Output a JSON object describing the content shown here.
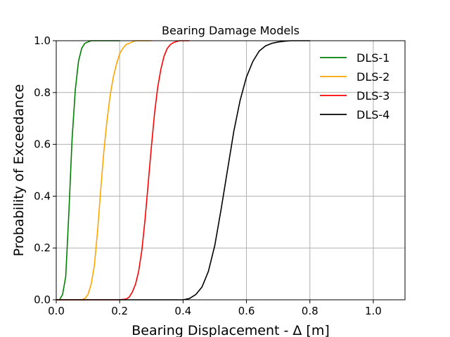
{
  "chart_data": {
    "type": "line",
    "title": "Bearing Damage Models",
    "xlabel": "Bearing Displacement - Δ [m]",
    "ylabel": "Probability of Exceedance",
    "xlim": [
      0.0,
      1.1
    ],
    "ylim": [
      0.0,
      1.0
    ],
    "xticks": [
      "0.0",
      "0.2",
      "0.4",
      "0.6",
      "0.8",
      "1.0"
    ],
    "yticks": [
      "0.0",
      "0.2",
      "0.4",
      "0.6",
      "0.8",
      "1.0"
    ],
    "grid": true,
    "legend": "top-right",
    "series": [
      {
        "name": "DLS-1",
        "color": "#008000",
        "x": [
          0.0,
          0.01,
          0.02,
          0.03,
          0.04,
          0.05,
          0.06,
          0.07,
          0.08,
          0.09,
          0.1,
          0.11,
          0.12,
          0.14,
          0.2
        ],
        "y": [
          0.0,
          0.0,
          0.02,
          0.09,
          0.34,
          0.62,
          0.81,
          0.92,
          0.97,
          0.99,
          0.995,
          1.0,
          1.0,
          1.0,
          1.0
        ]
      },
      {
        "name": "DLS-2",
        "color": "#FFA500",
        "x": [
          0.0,
          0.08,
          0.09,
          0.1,
          0.11,
          0.12,
          0.13,
          0.14,
          0.15,
          0.16,
          0.17,
          0.18,
          0.19,
          0.2,
          0.21,
          0.22,
          0.23,
          0.24,
          0.25,
          0.27,
          0.3
        ],
        "y": [
          0.0,
          0.0,
          0.005,
          0.02,
          0.06,
          0.13,
          0.26,
          0.42,
          0.57,
          0.69,
          0.79,
          0.86,
          0.91,
          0.95,
          0.97,
          0.985,
          0.99,
          0.995,
          1.0,
          1.0,
          1.0
        ]
      },
      {
        "name": "DLS-3",
        "color": "#FF0000",
        "x": [
          0.0,
          0.2,
          0.22,
          0.23,
          0.24,
          0.25,
          0.26,
          0.27,
          0.28,
          0.29,
          0.3,
          0.31,
          0.32,
          0.33,
          0.34,
          0.35,
          0.36,
          0.37,
          0.38,
          0.39,
          0.4,
          0.42
        ],
        "y": [
          0.0,
          0.0,
          0.003,
          0.01,
          0.03,
          0.06,
          0.11,
          0.19,
          0.31,
          0.45,
          0.59,
          0.72,
          0.82,
          0.89,
          0.94,
          0.97,
          0.985,
          0.993,
          0.997,
          1.0,
          1.0,
          1.0
        ]
      },
      {
        "name": "DLS-4",
        "color": "#000000",
        "x": [
          0.0,
          0.4,
          0.42,
          0.44,
          0.46,
          0.48,
          0.5,
          0.52,
          0.54,
          0.56,
          0.58,
          0.6,
          0.62,
          0.64,
          0.66,
          0.68,
          0.7,
          0.72,
          0.74,
          0.76,
          0.78,
          0.8
        ],
        "y": [
          0.0,
          0.0,
          0.005,
          0.02,
          0.05,
          0.11,
          0.21,
          0.35,
          0.5,
          0.65,
          0.77,
          0.86,
          0.92,
          0.96,
          0.98,
          0.99,
          0.995,
          0.998,
          1.0,
          1.0,
          1.0,
          1.0
        ]
      }
    ]
  }
}
